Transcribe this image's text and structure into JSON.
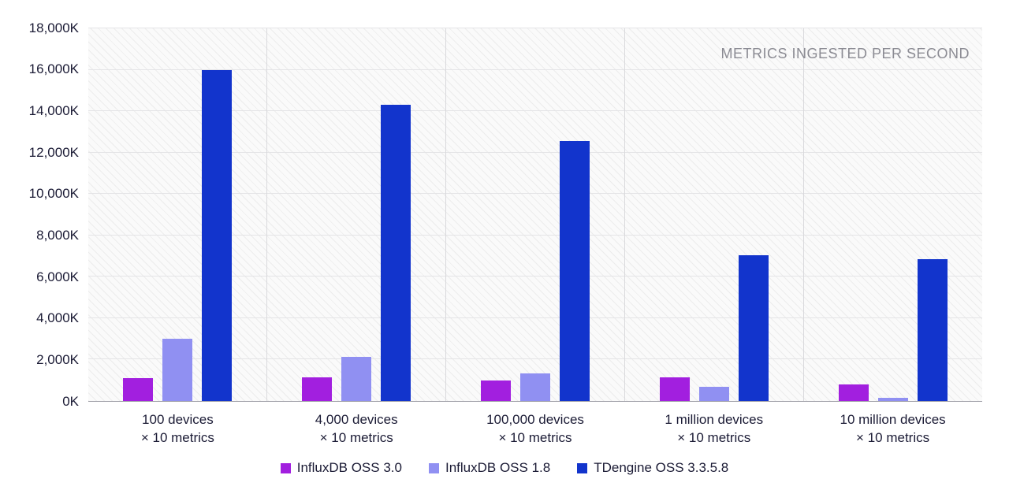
{
  "chart_data": {
    "type": "bar",
    "title": "METRICS INGESTED PER SECOND",
    "categories": [
      [
        "100 devices",
        "× 10 metrics"
      ],
      [
        "4,000 devices",
        "× 10 metrics"
      ],
      [
        "100,000 devices",
        "× 10 metrics"
      ],
      [
        "1 million devices",
        "× 10 metrics"
      ],
      [
        "10 million devices",
        "× 10 metrics"
      ]
    ],
    "series": [
      {
        "name": "InfluxDB OSS 3.0",
        "color": "#a21fdf",
        "values": [
          1100,
          1150,
          1000,
          1150,
          800
        ]
      },
      {
        "name": "InfluxDB OSS 1.8",
        "color": "#9090f2",
        "values": [
          3000,
          2150,
          1350,
          700,
          150
        ]
      },
      {
        "name": "TDengine OSS 3.3.5.8",
        "color": "#1234cc",
        "values": [
          16000,
          14300,
          12550,
          7050,
          6850
        ]
      }
    ],
    "unit": "K",
    "ylim": [
      0,
      18000
    ],
    "ytick_step": 2000,
    "ytick_labels": [
      "0K",
      "2,000K",
      "4,000K",
      "6,000K",
      "8,000K",
      "10,000K",
      "12,000K",
      "14,000K",
      "16,000K",
      "18,000K"
    ],
    "grid": true,
    "legend_position": "bottom"
  }
}
